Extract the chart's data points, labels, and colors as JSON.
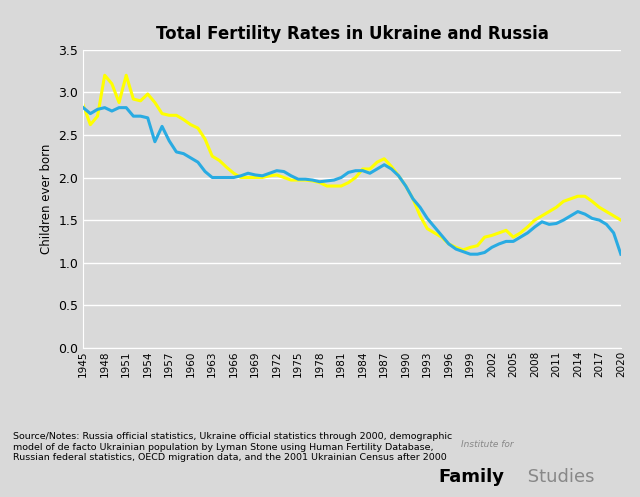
{
  "title": "Total Fertility Rates in Ukraine and Russia",
  "ylabel": "Children ever born",
  "background_color": "#d9d9d9",
  "ukraine_color": "#29abe2",
  "russia_color": "#ffff00",
  "ukraine_linewidth": 2.2,
  "russia_linewidth": 2.2,
  "ylim": [
    0,
    3.5
  ],
  "yticks": [
    0,
    0.5,
    1.0,
    1.5,
    2.0,
    2.5,
    3.0,
    3.5
  ],
  "footnote": "Source/Notes: Russia official statistics, Ukraine official statistics through 2000, demographic\nmodel of de facto Ukrainian population by Lyman Stone using Human Fertility Database,\nRussian federal statistics, OECD migration data, and the 2001 Ukrainian Census after 2000",
  "ukraine_data": {
    "years": [
      1945,
      1946,
      1947,
      1948,
      1949,
      1950,
      1951,
      1952,
      1953,
      1954,
      1955,
      1956,
      1957,
      1958,
      1959,
      1960,
      1961,
      1962,
      1963,
      1964,
      1965,
      1966,
      1967,
      1968,
      1969,
      1970,
      1971,
      1972,
      1973,
      1974,
      1975,
      1976,
      1977,
      1978,
      1979,
      1980,
      1981,
      1982,
      1983,
      1984,
      1985,
      1986,
      1987,
      1988,
      1989,
      1990,
      1991,
      1992,
      1993,
      1994,
      1995,
      1996,
      1997,
      1998,
      1999,
      2000,
      2001,
      2002,
      2003,
      2004,
      2005,
      2006,
      2007,
      2008,
      2009,
      2010,
      2011,
      2012,
      2013,
      2014,
      2015,
      2016,
      2017,
      2018,
      2019,
      2020
    ],
    "values": [
      2.82,
      2.75,
      2.8,
      2.82,
      2.78,
      2.82,
      2.82,
      2.72,
      2.72,
      2.7,
      2.42,
      2.6,
      2.43,
      2.3,
      2.28,
      2.23,
      2.18,
      2.07,
      2.0,
      2.0,
      2.0,
      2.0,
      2.02,
      2.05,
      2.03,
      2.02,
      2.05,
      2.08,
      2.07,
      2.02,
      1.98,
      1.98,
      1.97,
      1.95,
      1.96,
      1.97,
      2.0,
      2.06,
      2.08,
      2.08,
      2.05,
      2.1,
      2.15,
      2.1,
      2.02,
      1.9,
      1.75,
      1.65,
      1.52,
      1.42,
      1.32,
      1.22,
      1.16,
      1.13,
      1.1,
      1.1,
      1.12,
      1.18,
      1.22,
      1.25,
      1.25,
      1.3,
      1.35,
      1.42,
      1.48,
      1.45,
      1.46,
      1.5,
      1.55,
      1.6,
      1.57,
      1.52,
      1.5,
      1.45,
      1.35,
      1.1
    ]
  },
  "russia_data": {
    "years": [
      1945,
      1946,
      1947,
      1948,
      1949,
      1950,
      1951,
      1952,
      1953,
      1954,
      1955,
      1956,
      1957,
      1958,
      1959,
      1960,
      1961,
      1962,
      1963,
      1964,
      1965,
      1966,
      1967,
      1968,
      1969,
      1970,
      1971,
      1972,
      1973,
      1974,
      1975,
      1976,
      1977,
      1978,
      1979,
      1980,
      1981,
      1982,
      1983,
      1984,
      1985,
      1986,
      1987,
      1988,
      1989,
      1990,
      1991,
      1992,
      1993,
      1994,
      1995,
      1996,
      1997,
      1998,
      1999,
      2000,
      2001,
      2002,
      2003,
      2004,
      2005,
      2006,
      2007,
      2008,
      2009,
      2010,
      2011,
      2012,
      2013,
      2014,
      2015,
      2016,
      2017,
      2018,
      2019,
      2020
    ],
    "values": [
      2.85,
      2.62,
      2.72,
      3.2,
      3.1,
      2.88,
      3.2,
      2.92,
      2.9,
      2.98,
      2.88,
      2.75,
      2.73,
      2.73,
      2.68,
      2.62,
      2.58,
      2.45,
      2.25,
      2.2,
      2.12,
      2.05,
      2.0,
      2.0,
      2.0,
      2.0,
      2.02,
      2.03,
      2.0,
      1.97,
      1.97,
      1.97,
      1.96,
      1.94,
      1.9,
      1.9,
      1.9,
      1.94,
      2.0,
      2.1,
      2.1,
      2.18,
      2.22,
      2.13,
      2.02,
      1.9,
      1.75,
      1.55,
      1.4,
      1.35,
      1.3,
      1.22,
      1.18,
      1.15,
      1.18,
      1.2,
      1.3,
      1.32,
      1.35,
      1.38,
      1.3,
      1.35,
      1.42,
      1.5,
      1.55,
      1.6,
      1.65,
      1.72,
      1.75,
      1.78,
      1.78,
      1.72,
      1.65,
      1.6,
      1.55,
      1.5
    ]
  }
}
